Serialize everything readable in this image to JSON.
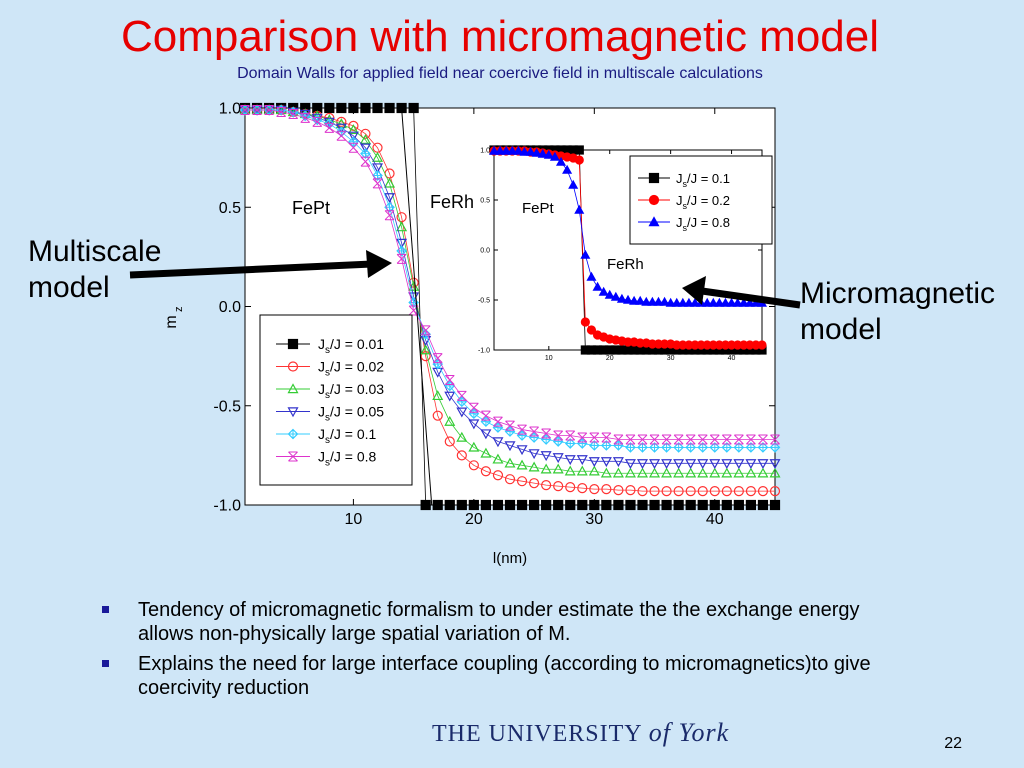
{
  "slide": {
    "title": "Comparison with micromagnetic model",
    "subtitle": "Domain Walls for applied field near coercive field in multiscale calculations",
    "left_label": [
      "Multiscale",
      "model"
    ],
    "right_label": [
      "Micromagnetic",
      "model"
    ],
    "bullets": [
      "Tendency of micromagnetic formalism to under estimate the the exchange energy allows non-physically large spatial variation of M.",
      "Explains the need for large interface coupling (according to micromagnetics)to give coercivity reduction"
    ],
    "logo": {
      "part1": "THE UNIVERSITY",
      "part2": "of York"
    },
    "page_number": "22",
    "colors": {
      "title": "#e60000",
      "background": "#cfe6f7",
      "arrow": "#000000"
    }
  },
  "chart_data": [
    {
      "type": "line",
      "name": "multiscale",
      "xlabel": "l(nm)",
      "ylabel": "m",
      "ylabel_sub": "z",
      "xlim": [
        1,
        45
      ],
      "ylim": [
        -1.0,
        1.0
      ],
      "xticks": [
        10,
        20,
        30,
        40
      ],
      "yticks": [
        1.0,
        0.5,
        0.0,
        -0.5,
        -1.0
      ],
      "ytick_labels": [
        "1.0",
        "0.5",
        "0.0",
        "-0.5",
        "-1.0"
      ],
      "annotations": [
        "FePt",
        "FeRh"
      ],
      "legend_position": "inside-left",
      "x": [
        1,
        2,
        3,
        4,
        5,
        6,
        7,
        8,
        9,
        10,
        11,
        12,
        13,
        14,
        15,
        16,
        17,
        18,
        19,
        20,
        21,
        22,
        23,
        24,
        25,
        26,
        27,
        28,
        29,
        30,
        31,
        32,
        33,
        34,
        35,
        36,
        37,
        38,
        39,
        40,
        41,
        42,
        43,
        44,
        45
      ],
      "series": [
        {
          "name": "Js/J = 0.01",
          "name_sub": "s",
          "name_pre": "J",
          "name_post": "/J = 0.01",
          "marker": "square-filled",
          "color": "#000000",
          "values": [
            1,
            1,
            1,
            1,
            1,
            1,
            1,
            1,
            1,
            1,
            1,
            1,
            1,
            1,
            1,
            -1,
            -1,
            -1,
            -1,
            -1,
            -1,
            -1,
            -1,
            -1,
            -1,
            -1,
            -1,
            -1,
            -1,
            -1,
            -1,
            -1,
            -1,
            -1,
            -1,
            -1,
            -1,
            -1,
            -1,
            -1,
            -1,
            -1,
            -1,
            -1,
            -1
          ]
        },
        {
          "name": "Js/J = 0.02",
          "name_sub": "s",
          "name_pre": "J",
          "name_post": "/J = 0.02",
          "marker": "circle-open",
          "color": "#ff3333",
          "values": [
            0.99,
            0.99,
            0.99,
            0.99,
            0.98,
            0.97,
            0.96,
            0.95,
            0.93,
            0.91,
            0.87,
            0.8,
            0.67,
            0.45,
            0.12,
            -0.25,
            -0.55,
            -0.68,
            -0.75,
            -0.8,
            -0.83,
            -0.85,
            -0.87,
            -0.88,
            -0.89,
            -0.9,
            -0.905,
            -0.91,
            -0.915,
            -0.92,
            -0.92,
            -0.925,
            -0.925,
            -0.93,
            -0.93,
            -0.93,
            -0.93,
            -0.93,
            -0.93,
            -0.93,
            -0.93,
            -0.93,
            -0.93,
            -0.93,
            -0.93
          ]
        },
        {
          "name": "Js/J = 0.03",
          "name_sub": "s",
          "name_pre": "J",
          "name_post": "/J = 0.03",
          "marker": "triangle-up-open",
          "color": "#33cc33",
          "values": [
            0.99,
            0.99,
            0.99,
            0.99,
            0.98,
            0.97,
            0.96,
            0.94,
            0.92,
            0.89,
            0.84,
            0.75,
            0.62,
            0.4,
            0.1,
            -0.22,
            -0.45,
            -0.58,
            -0.66,
            -0.71,
            -0.74,
            -0.77,
            -0.79,
            -0.8,
            -0.81,
            -0.82,
            -0.82,
            -0.83,
            -0.83,
            -0.83,
            -0.84,
            -0.84,
            -0.84,
            -0.84,
            -0.84,
            -0.84,
            -0.84,
            -0.84,
            -0.84,
            -0.84,
            -0.84,
            -0.84,
            -0.84,
            -0.84,
            -0.84
          ]
        },
        {
          "name": "Js/J = 0.05",
          "name_sub": "s",
          "name_pre": "J",
          "name_post": "/J = 0.05",
          "marker": "triangle-down-open",
          "color": "#3333cc",
          "values": [
            0.99,
            0.99,
            0.99,
            0.99,
            0.98,
            0.97,
            0.95,
            0.93,
            0.9,
            0.86,
            0.8,
            0.7,
            0.55,
            0.32,
            0.05,
            -0.17,
            -0.33,
            -0.45,
            -0.53,
            -0.59,
            -0.64,
            -0.68,
            -0.7,
            -0.72,
            -0.74,
            -0.75,
            -0.76,
            -0.77,
            -0.77,
            -0.78,
            -0.78,
            -0.78,
            -0.79,
            -0.79,
            -0.79,
            -0.79,
            -0.79,
            -0.79,
            -0.79,
            -0.79,
            -0.79,
            -0.79,
            -0.79,
            -0.79,
            -0.79
          ]
        },
        {
          "name": "Js/J = 0.1",
          "name_sub": "s",
          "name_pre": "J",
          "name_post": "/J = 0.1",
          "marker": "diamond-open",
          "color": "#33ccff",
          "values": [
            0.99,
            0.99,
            0.99,
            0.99,
            0.98,
            0.96,
            0.94,
            0.92,
            0.88,
            0.83,
            0.77,
            0.66,
            0.5,
            0.28,
            0.02,
            -0.14,
            -0.29,
            -0.4,
            -0.48,
            -0.54,
            -0.58,
            -0.61,
            -0.63,
            -0.65,
            -0.66,
            -0.67,
            -0.68,
            -0.69,
            -0.69,
            -0.7,
            -0.7,
            -0.7,
            -0.71,
            -0.71,
            -0.71,
            -0.71,
            -0.71,
            -0.71,
            -0.71,
            -0.71,
            -0.71,
            -0.71,
            -0.71,
            -0.71,
            -0.71
          ]
        },
        {
          "name": "Js/J = 0.8",
          "name_sub": "s",
          "name_pre": "J",
          "name_post": "/J = 0.8",
          "marker": "x-diamond",
          "color": "#dd33cc",
          "values": [
            0.99,
            0.99,
            0.99,
            0.98,
            0.97,
            0.95,
            0.93,
            0.9,
            0.86,
            0.8,
            0.73,
            0.62,
            0.46,
            0.24,
            -0.02,
            -0.12,
            -0.26,
            -0.37,
            -0.45,
            -0.51,
            -0.55,
            -0.58,
            -0.6,
            -0.62,
            -0.63,
            -0.64,
            -0.65,
            -0.65,
            -0.66,
            -0.66,
            -0.66,
            -0.67,
            -0.67,
            -0.67,
            -0.67,
            -0.67,
            -0.67,
            -0.67,
            -0.67,
            -0.67,
            -0.67,
            -0.67,
            -0.67,
            -0.67,
            -0.67
          ]
        }
      ]
    },
    {
      "type": "scatter",
      "name": "micromagnetic",
      "xlim": [
        1,
        45
      ],
      "ylim": [
        -1.0,
        1.0
      ],
      "xticks": [
        10,
        20,
        30,
        40
      ],
      "yticks": [
        1.0,
        0.5,
        0.0,
        -0.5,
        -1.0
      ],
      "ytick_labels": [
        "1.0",
        "0.5",
        "0.0",
        "-0.5",
        "-1.0"
      ],
      "annotations": [
        "FePt",
        "FeRh"
      ],
      "legend_position": "top-right",
      "x": [
        1,
        2,
        3,
        4,
        5,
        6,
        7,
        8,
        9,
        10,
        11,
        12,
        13,
        14,
        15,
        16,
        17,
        18,
        19,
        20,
        21,
        22,
        23,
        24,
        25,
        26,
        27,
        28,
        29,
        30,
        31,
        32,
        33,
        34,
        35,
        36,
        37,
        38,
        39,
        40,
        41,
        42,
        43,
        44,
        45
      ],
      "series": [
        {
          "name": "Js/J = 0.1",
          "name_sub": "s",
          "name_pre": "J",
          "name_post": "/J = 0.1",
          "marker": "square-filled",
          "color": "#000000",
          "values": [
            1,
            1,
            1,
            1,
            1,
            1,
            1,
            1,
            1,
            1,
            1,
            1,
            1,
            1,
            1,
            -1,
            -1,
            -1,
            -1,
            -1,
            -1,
            -1,
            -1,
            -1,
            -1,
            -1,
            -1,
            -1,
            -1,
            -1,
            -1,
            -1,
            -1,
            -1,
            -1,
            -1,
            -1,
            -1,
            -1,
            -1,
            -1,
            -1,
            -1,
            -1,
            -1
          ]
        },
        {
          "name": "Js/J = 0.2",
          "name_sub": "s",
          "name_pre": "J",
          "name_post": "/J = 0.2",
          "marker": "circle-filled",
          "color": "#ff0000",
          "values": [
            0.99,
            0.99,
            0.99,
            0.99,
            0.99,
            0.99,
            0.98,
            0.98,
            0.97,
            0.96,
            0.95,
            0.94,
            0.93,
            0.92,
            0.9,
            -0.72,
            -0.8,
            -0.85,
            -0.87,
            -0.89,
            -0.9,
            -0.91,
            -0.92,
            -0.92,
            -0.93,
            -0.93,
            -0.94,
            -0.94,
            -0.94,
            -0.94,
            -0.95,
            -0.95,
            -0.95,
            -0.95,
            -0.95,
            -0.95,
            -0.95,
            -0.95,
            -0.95,
            -0.95,
            -0.95,
            -0.95,
            -0.95,
            -0.95,
            -0.95
          ]
        },
        {
          "name": "Js/J = 0.8",
          "name_sub": "s",
          "name_pre": "J",
          "name_post": "/J = 0.8",
          "marker": "triangle-filled",
          "color": "#0000ff",
          "values": [
            0.99,
            0.99,
            0.99,
            0.99,
            0.99,
            0.98,
            0.98,
            0.97,
            0.96,
            0.95,
            0.93,
            0.88,
            0.8,
            0.65,
            0.4,
            -0.05,
            -0.27,
            -0.37,
            -0.42,
            -0.45,
            -0.47,
            -0.49,
            -0.5,
            -0.51,
            -0.51,
            -0.52,
            -0.52,
            -0.52,
            -0.52,
            -0.53,
            -0.53,
            -0.53,
            -0.53,
            -0.53,
            -0.53,
            -0.53,
            -0.53,
            -0.53,
            -0.53,
            -0.53,
            -0.53,
            -0.53,
            -0.53,
            -0.53,
            -0.53
          ]
        }
      ]
    }
  ]
}
